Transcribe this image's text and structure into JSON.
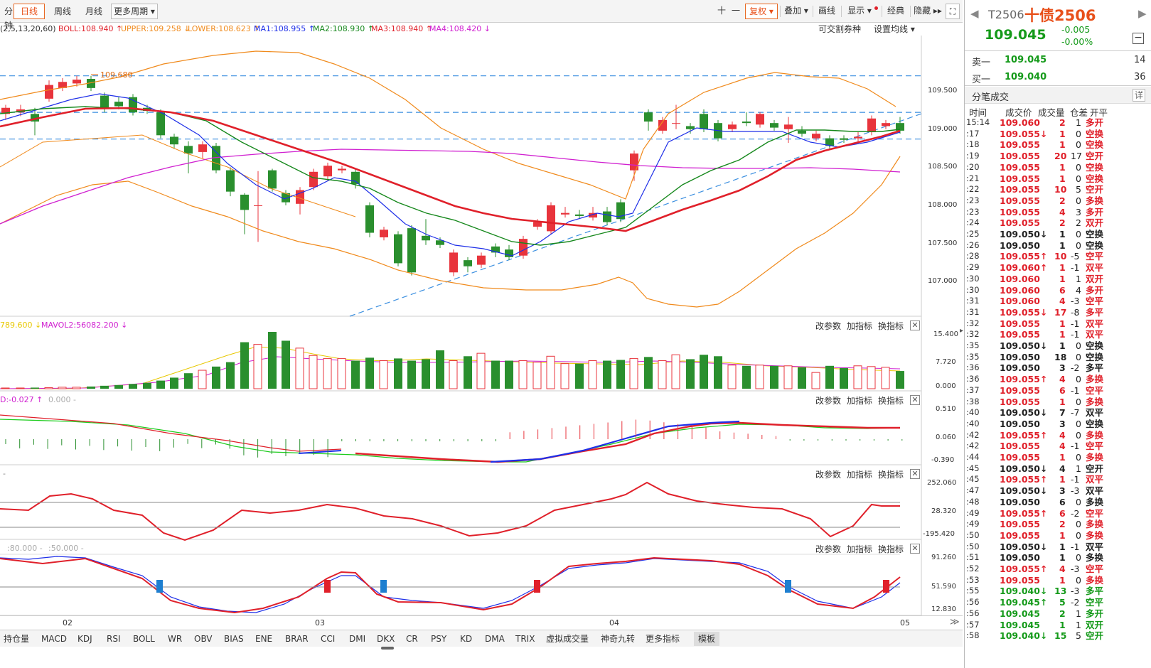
{
  "toolbar": {
    "periods": [
      "分钟",
      "日线",
      "周线",
      "月线",
      "更多周期 ▾"
    ],
    "active_period": "日线",
    "tools": [
      "十",
      "一",
      "复权 ▾",
      "叠加 ▾",
      "画线",
      "显示 ▾",
      "经典",
      "隐藏 ▸▸",
      "⛶"
    ]
  },
  "legend": {
    "params": "(2,5,13,20,60)",
    "items": [
      {
        "text": "BOLL:108.940 ↑",
        "color": "#e0202a"
      },
      {
        "text": "UPPER:109.258 ↓",
        "color": "#f08a1c"
      },
      {
        "text": "LOWER:108.623 ↑",
        "color": "#f08a1c"
      },
      {
        "text": "MA1:108.955 ↑",
        "color": "#1e2fe8"
      },
      {
        "text": "MA2:108.930 ↑",
        "color": "#16881c"
      },
      {
        "text": "MA3:108.940 ↑",
        "color": "#e0202a"
      },
      {
        "text": "MA4:108.420 ↓",
        "color": "#d020d0"
      }
    ],
    "right1": "可交割券种",
    "right2": "设置均线 ▾"
  },
  "main_axis": [
    "109.500",
    "109.000",
    "108.500",
    "108.000",
    "107.500",
    "107.000"
  ],
  "main_annotation": "109.680",
  "vol": {
    "legend1": "789.600 ↓",
    "legend2": "MAVOL2:56082.200 ↓",
    "axis": [
      "15.400",
      "7.720",
      "0.000"
    ]
  },
  "macd": {
    "legend1": "D:-0.027 ↑",
    "legend2": "0.000 -",
    "axis": [
      "0.510",
      "0.060",
      "-0.390"
    ]
  },
  "ind3": {
    "legend1": "-",
    "axis": [
      "252.060",
      "28.320",
      "-195.420"
    ]
  },
  "kdj": {
    "legend1": ":80.000 -",
    "legend2": ":50.000 -",
    "axis": [
      "91.260",
      "51.590",
      "12.830"
    ]
  },
  "pane_buttons": [
    "改参数",
    "加指标",
    "换指标"
  ],
  "xaxis": [
    "02",
    "03",
    "04",
    "05"
  ],
  "bottom_tabs": [
    "持仓量",
    "MACD",
    "KDJ",
    "RSI",
    "BOLL",
    "WR",
    "OBV",
    "BIAS",
    "ENE",
    "BRAR",
    "CCI",
    "DMI",
    "DKX",
    "CR",
    "PSY",
    "KD",
    "DMA",
    "TRIX",
    "虚拟成交量",
    "神奇九转",
    "更多指标",
    "模板"
  ],
  "active_tab": "模板",
  "quote": {
    "code": "T2506",
    "name": "十债2506",
    "price": "109.045",
    "change": "-0.005",
    "change_pct": "-0.00%",
    "sell_label": "卖一",
    "sell_price": "109.045",
    "sell_qty": "14",
    "buy_label": "买一",
    "buy_price": "109.040",
    "buy_qty": "36",
    "section": "分笔成交",
    "detail": "详",
    "headers": [
      "时间",
      "成交价",
      "成交量",
      "仓差",
      "开平"
    ]
  },
  "trades": [
    {
      "t": "15:14",
      "p": "109.060",
      "a": "",
      "c": "red",
      "v": "2",
      "d": "1",
      "k": "多开"
    },
    {
      "t": ":17",
      "p": "109.055",
      "a": "↓",
      "c": "red",
      "v": "1",
      "d": "0",
      "k": "空换"
    },
    {
      "t": ":18",
      "p": "109.055",
      "a": "",
      "c": "red",
      "v": "1",
      "d": "0",
      "k": "空换"
    },
    {
      "t": ":19",
      "p": "109.055",
      "a": "",
      "c": "red",
      "v": "20",
      "d": "17",
      "k": "空开"
    },
    {
      "t": ":20",
      "p": "109.055",
      "a": "",
      "c": "red",
      "v": "1",
      "d": "0",
      "k": "空换"
    },
    {
      "t": ":21",
      "p": "109.055",
      "a": "",
      "c": "red",
      "v": "1",
      "d": "0",
      "k": "空换"
    },
    {
      "t": ":22",
      "p": "109.055",
      "a": "",
      "c": "red",
      "v": "10",
      "d": "5",
      "k": "空开"
    },
    {
      "t": ":23",
      "p": "109.055",
      "a": "",
      "c": "red",
      "v": "2",
      "d": "0",
      "k": "多换"
    },
    {
      "t": ":23",
      "p": "109.055",
      "a": "",
      "c": "red",
      "v": "4",
      "d": "3",
      "k": "多开"
    },
    {
      "t": ":24",
      "p": "109.055",
      "a": "",
      "c": "red",
      "v": "2",
      "d": "2",
      "k": "双开"
    },
    {
      "t": ":25",
      "p": "109.050",
      "a": "↓",
      "c": "dark",
      "v": "1",
      "d": "0",
      "k": "空换"
    },
    {
      "t": ":26",
      "p": "109.050",
      "a": "",
      "c": "dark",
      "v": "1",
      "d": "0",
      "k": "空换"
    },
    {
      "t": ":28",
      "p": "109.055",
      "a": "↑",
      "c": "red",
      "v": "10",
      "d": "-5",
      "k": "空平"
    },
    {
      "t": ":29",
      "p": "109.060",
      "a": "↑",
      "c": "red",
      "v": "1",
      "d": "-1",
      "k": "双平"
    },
    {
      "t": ":30",
      "p": "109.060",
      "a": "",
      "c": "red",
      "v": "1",
      "d": "1",
      "k": "双开"
    },
    {
      "t": ":30",
      "p": "109.060",
      "a": "",
      "c": "red",
      "v": "6",
      "d": "4",
      "k": "多开"
    },
    {
      "t": ":31",
      "p": "109.060",
      "a": "",
      "c": "red",
      "v": "4",
      "d": "-3",
      "k": "空平"
    },
    {
      "t": ":31",
      "p": "109.055",
      "a": "↓",
      "c": "red",
      "v": "17",
      "d": "-8",
      "k": "多平"
    },
    {
      "t": ":32",
      "p": "109.055",
      "a": "",
      "c": "red",
      "v": "1",
      "d": "-1",
      "k": "双平"
    },
    {
      "t": ":32",
      "p": "109.055",
      "a": "",
      "c": "red",
      "v": "1",
      "d": "-1",
      "k": "双平"
    },
    {
      "t": ":35",
      "p": "109.050",
      "a": "↓",
      "c": "dark",
      "v": "1",
      "d": "0",
      "k": "空换"
    },
    {
      "t": ":35",
      "p": "109.050",
      "a": "",
      "c": "dark",
      "v": "18",
      "d": "0",
      "k": "空换"
    },
    {
      "t": ":36",
      "p": "109.050",
      "a": "",
      "c": "dark",
      "v": "3",
      "d": "-2",
      "k": "多平"
    },
    {
      "t": ":36",
      "p": "109.055",
      "a": "↑",
      "c": "red",
      "v": "4",
      "d": "0",
      "k": "多换"
    },
    {
      "t": ":37",
      "p": "109.055",
      "a": "",
      "c": "red",
      "v": "6",
      "d": "-1",
      "k": "空平"
    },
    {
      "t": ":38",
      "p": "109.055",
      "a": "",
      "c": "red",
      "v": "1",
      "d": "0",
      "k": "多换"
    },
    {
      "t": ":40",
      "p": "109.050",
      "a": "↓",
      "c": "dark",
      "v": "7",
      "d": "-7",
      "k": "双平"
    },
    {
      "t": ":40",
      "p": "109.050",
      "a": "",
      "c": "dark",
      "v": "3",
      "d": "0",
      "k": "空换"
    },
    {
      "t": ":42",
      "p": "109.055",
      "a": "↑",
      "c": "red",
      "v": "4",
      "d": "0",
      "k": "多换"
    },
    {
      "t": ":42",
      "p": "109.055",
      "a": "",
      "c": "red",
      "v": "4",
      "d": "-1",
      "k": "空平"
    },
    {
      "t": ":44",
      "p": "109.055",
      "a": "",
      "c": "red",
      "v": "1",
      "d": "0",
      "k": "多换"
    },
    {
      "t": ":45",
      "p": "109.050",
      "a": "↓",
      "c": "dark",
      "v": "4",
      "d": "1",
      "k": "空开"
    },
    {
      "t": ":45",
      "p": "109.055",
      "a": "↑",
      "c": "red",
      "v": "1",
      "d": "-1",
      "k": "双平"
    },
    {
      "t": ":47",
      "p": "109.050",
      "a": "↓",
      "c": "dark",
      "v": "3",
      "d": "-3",
      "k": "双平"
    },
    {
      "t": ":48",
      "p": "109.050",
      "a": "",
      "c": "dark",
      "v": "6",
      "d": "0",
      "k": "多换"
    },
    {
      "t": ":49",
      "p": "109.055",
      "a": "↑",
      "c": "red",
      "v": "6",
      "d": "-2",
      "k": "空平"
    },
    {
      "t": ":49",
      "p": "109.055",
      "a": "",
      "c": "red",
      "v": "2",
      "d": "0",
      "k": "多换"
    },
    {
      "t": ":50",
      "p": "109.055",
      "a": "",
      "c": "red",
      "v": "1",
      "d": "0",
      "k": "多换"
    },
    {
      "t": ":50",
      "p": "109.050",
      "a": "↓",
      "c": "dark",
      "v": "1",
      "d": "-1",
      "k": "双平"
    },
    {
      "t": ":51",
      "p": "109.050",
      "a": "",
      "c": "dark",
      "v": "1",
      "d": "0",
      "k": "多换"
    },
    {
      "t": ":52",
      "p": "109.055",
      "a": "↑",
      "c": "red",
      "v": "4",
      "d": "-3",
      "k": "空平"
    },
    {
      "t": ":53",
      "p": "109.055",
      "a": "",
      "c": "red",
      "v": "1",
      "d": "0",
      "k": "多换"
    },
    {
      "t": ":55",
      "p": "109.040",
      "a": "↓",
      "c": "green",
      "v": "13",
      "d": "-3",
      "k": "多平"
    },
    {
      "t": ":56",
      "p": "109.045",
      "a": "↑",
      "c": "green",
      "v": "5",
      "d": "-2",
      "k": "空平"
    },
    {
      "t": ":56",
      "p": "109.045",
      "a": "",
      "c": "green",
      "v": "2",
      "d": "1",
      "k": "多开"
    },
    {
      "t": ":57",
      "p": "109.045",
      "a": "",
      "c": "green",
      "v": "1",
      "d": "1",
      "k": "双开"
    },
    {
      "t": ":58",
      "p": "109.040",
      "a": "↓",
      "c": "green",
      "v": "15",
      "d": "5",
      "k": "空开"
    }
  ]
}
